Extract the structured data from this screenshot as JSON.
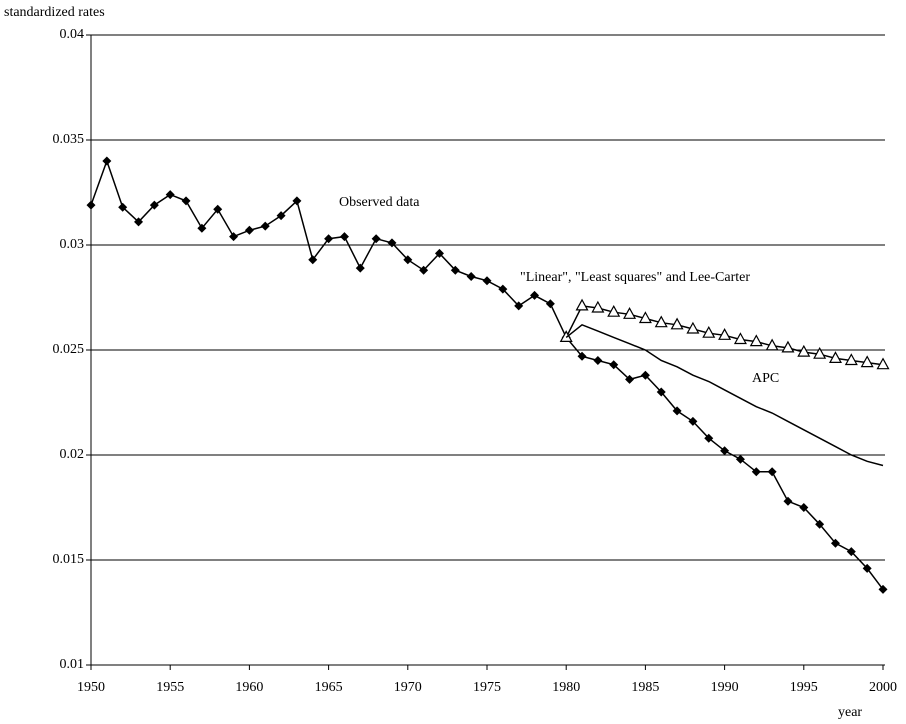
{
  "chart_data": {
    "type": "line",
    "y_label": "standardized rates",
    "x_label": "year",
    "x": [
      1950,
      1951,
      1952,
      1953,
      1954,
      1955,
      1956,
      1957,
      1958,
      1959,
      1960,
      1961,
      1962,
      1963,
      1964,
      1965,
      1966,
      1967,
      1968,
      1969,
      1970,
      1971,
      1972,
      1973,
      1974,
      1975,
      1976,
      1977,
      1978,
      1979,
      1980,
      1981,
      1982,
      1983,
      1984,
      1985,
      1986,
      1987,
      1988,
      1989,
      1990,
      1991,
      1992,
      1993,
      1994,
      1995,
      1996,
      1997,
      1998,
      1999,
      2000
    ],
    "series": [
      {
        "name": "Observed data",
        "color": "#000000",
        "marker": "diamond",
        "values": [
          0.0319,
          0.034,
          0.0318,
          0.0311,
          0.0319,
          0.0324,
          0.0321,
          0.0308,
          0.0317,
          0.0304,
          0.0307,
          0.0309,
          0.0314,
          0.0321,
          0.0293,
          0.0303,
          0.0304,
          0.0289,
          0.0303,
          0.0301,
          0.0293,
          0.0288,
          0.0296,
          0.0288,
          0.0285,
          0.0283,
          0.0279,
          0.0271,
          0.0276,
          0.0272,
          0.0256,
          0.0247,
          0.0245,
          0.0243,
          0.0236,
          0.0238,
          0.023,
          0.0221,
          0.0216,
          0.0208,
          0.0202,
          0.0198,
          0.0192,
          0.0192,
          0.0178,
          0.0175,
          0.0167,
          0.0158,
          0.0154,
          0.0146,
          0.0136
        ]
      },
      {
        "name": "\"Linear\", \"Least squares\" and Lee-Carter",
        "color": "#000000",
        "marker": "triangle",
        "values": [
          null,
          null,
          null,
          null,
          null,
          null,
          null,
          null,
          null,
          null,
          null,
          null,
          null,
          null,
          null,
          null,
          null,
          null,
          null,
          null,
          null,
          null,
          null,
          null,
          null,
          null,
          null,
          null,
          null,
          null,
          0.0256,
          0.0271,
          0.027,
          0.0268,
          0.0267,
          0.0265,
          0.0263,
          0.0262,
          0.026,
          0.0258,
          0.0257,
          0.0255,
          0.0254,
          0.0252,
          0.0251,
          0.0249,
          0.0248,
          0.0246,
          0.0245,
          0.0244,
          0.0243
        ]
      },
      {
        "name": "APC",
        "color": "#000000",
        "marker": "none",
        "values": [
          null,
          null,
          null,
          null,
          null,
          null,
          null,
          null,
          null,
          null,
          null,
          null,
          null,
          null,
          null,
          null,
          null,
          null,
          null,
          null,
          null,
          null,
          null,
          null,
          null,
          null,
          null,
          null,
          null,
          null,
          0.0256,
          0.0262,
          0.0259,
          0.0256,
          0.0253,
          0.025,
          0.0245,
          0.0242,
          0.0238,
          0.0235,
          0.0231,
          0.0227,
          0.0223,
          0.022,
          0.0216,
          0.0212,
          0.0208,
          0.0204,
          0.02,
          0.0197,
          0.0195
        ]
      }
    ],
    "xlim": [
      1950,
      2000
    ],
    "xticks": [
      1950,
      1955,
      1960,
      1965,
      1970,
      1975,
      1980,
      1985,
      1990,
      1995,
      2000
    ],
    "ylim": [
      0.01,
      0.04
    ],
    "yticks": [
      0.01,
      0.015,
      0.02,
      0.025,
      0.03,
      0.035,
      0.04
    ],
    "grid": true
  }
}
